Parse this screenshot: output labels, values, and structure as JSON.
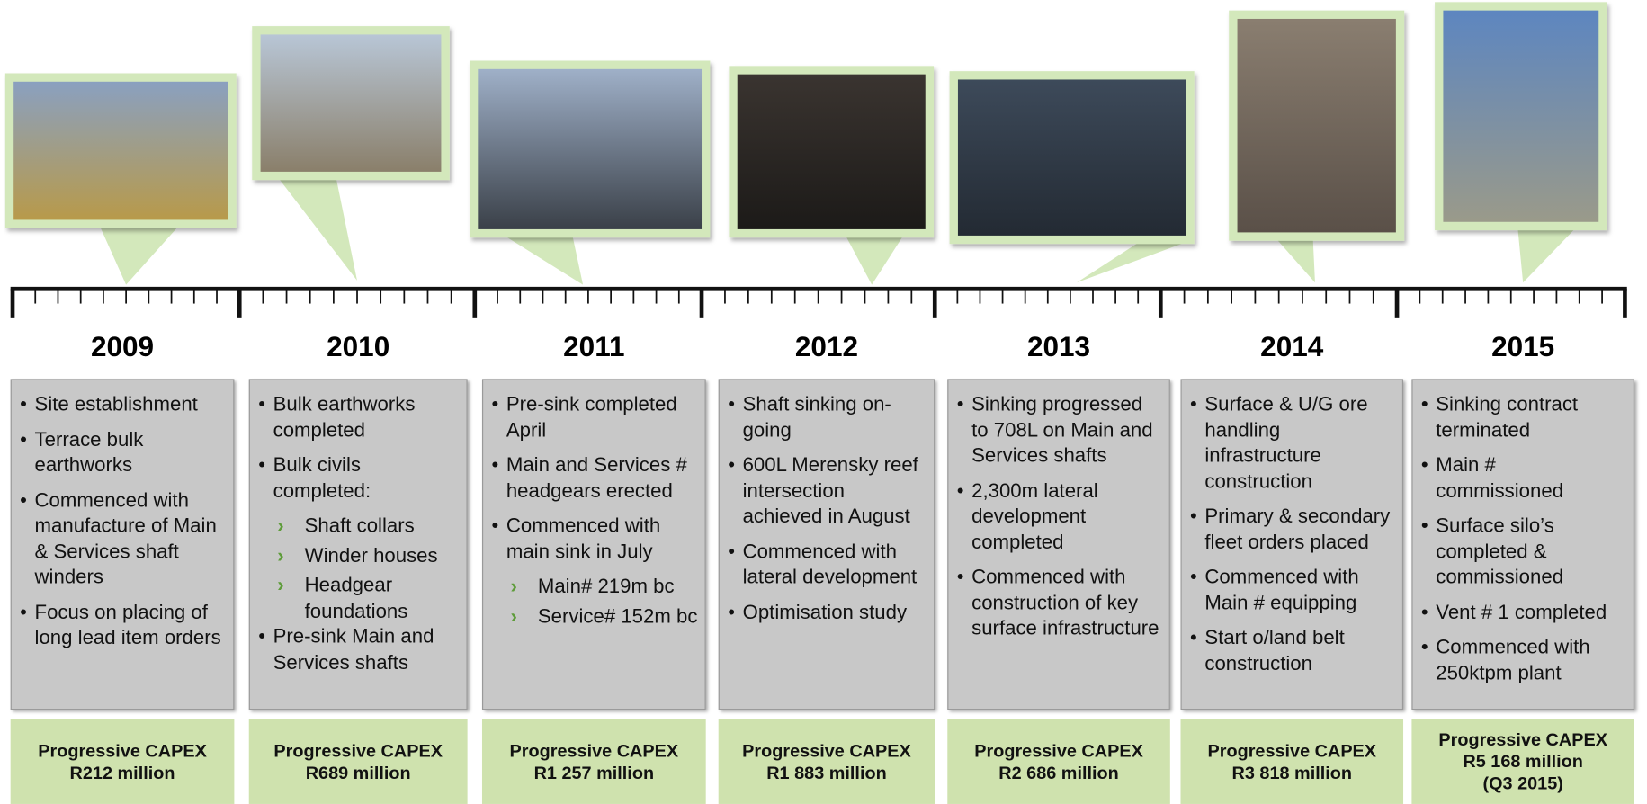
{
  "columns": [
    {
      "year": "2009",
      "bullets": [
        {
          "text": "Site establishment"
        },
        {
          "text": "Terrace bulk earthworks"
        },
        {
          "text": "Commenced with manufacture of Main & Services shaft winders"
        },
        {
          "text": "Focus on placing of long lead item orders"
        }
      ],
      "capex": [
        "Progressive CAPEX",
        "R212 million"
      ]
    },
    {
      "year": "2010",
      "bullets": [
        {
          "text": "Bulk earthworks completed"
        },
        {
          "text": "Bulk civils completed:",
          "sub": [
            "Shaft collars",
            "Winder houses",
            "Headgear foundations"
          ]
        },
        {
          "text": "Pre-sink Main and Services shafts"
        }
      ],
      "capex": [
        "Progressive CAPEX",
        "R689 million"
      ]
    },
    {
      "year": "2011",
      "bullets": [
        {
          "text": "Pre-sink completed April"
        },
        {
          "text": "Main and Services # headgears erected"
        },
        {
          "text": "Commenced with main sink in July",
          "sub": [
            "Main# 219m bc",
            "Service# 152m bc"
          ]
        }
      ],
      "capex": [
        "Progressive CAPEX",
        "R1 257 million"
      ]
    },
    {
      "year": "2012",
      "bullets": [
        {
          "text": "Shaft sinking on-going"
        },
        {
          "text": "600L Merensky reef  intersection achieved in August"
        },
        {
          "text": "Commenced with lateral development"
        },
        {
          "text": "Optimisation study"
        }
      ],
      "capex": [
        "Progressive CAPEX",
        "R1 883 million"
      ]
    },
    {
      "year": "2013",
      "bullets": [
        {
          "text": "Sinking progressed to 708L on Main and Services shafts"
        },
        {
          "text": "2,300m lateral development completed"
        },
        {
          "text": "Commenced with construction of key surface infrastructure"
        }
      ],
      "capex": [
        "Progressive CAPEX",
        "R2 686 million"
      ]
    },
    {
      "year": "2014",
      "bullets": [
        {
          "text": "Surface & U/G ore handling infrastructure construction"
        },
        {
          "text": "Primary & secondary fleet orders placed"
        },
        {
          "text": "Commenced with Main # equipping"
        },
        {
          "text": "Start o/land belt construction"
        }
      ],
      "capex": [
        "Progressive CAPEX",
        "R3 818 million"
      ]
    },
    {
      "year": "2015",
      "bullets": [
        {
          "text": "Sinking contract terminated"
        },
        {
          "text": "Main # commissioned"
        },
        {
          "text": "Surface silo’s completed & commissioned"
        },
        {
          "text": "Vent # 1 completed"
        },
        {
          "text": "Commenced with 250ktpm plant"
        }
      ],
      "capex": [
        "Progressive CAPEX",
        "R5 168 million",
        "(Q3 2015)"
      ]
    }
  ]
}
